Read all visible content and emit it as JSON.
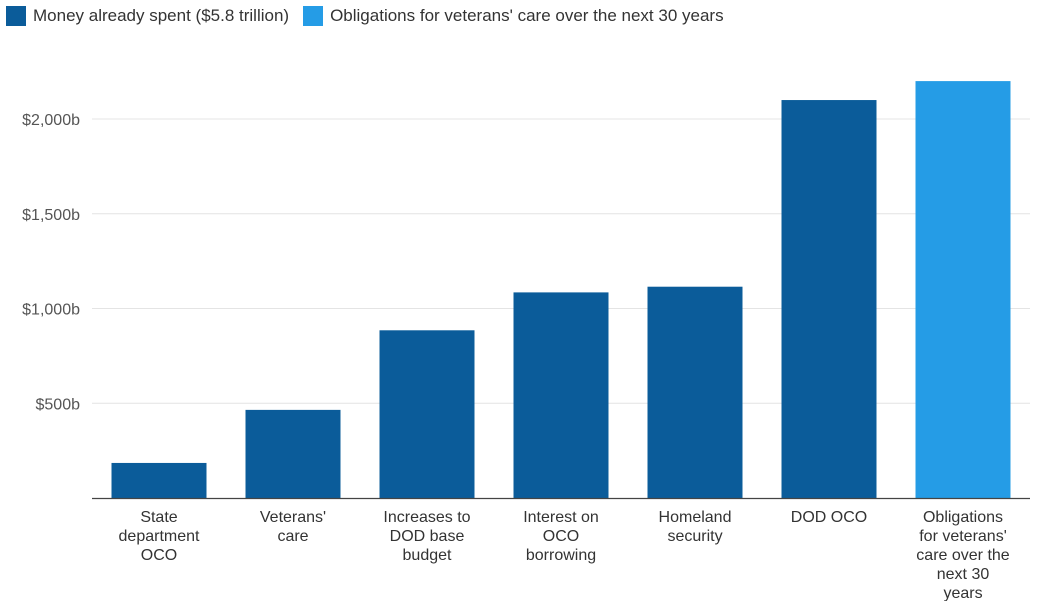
{
  "legend": [
    {
      "label": "Money already spent ($5.8 trillion)",
      "color": "#0b5c9a"
    },
    {
      "label": "Obligations for veterans' care over the next 30 years",
      "color": "#259ce6"
    }
  ],
  "chart_data": {
    "type": "bar",
    "categories": [
      "State department OCO",
      "Veterans' care",
      "Increases to DOD base budget",
      "Interest on OCO borrowing",
      "Homeland security",
      "DOD OCO",
      "Obligations for veterans' care over the next 30 years"
    ],
    "category_lines": [
      [
        "State",
        "department",
        "OCO"
      ],
      [
        "Veterans'",
        "care"
      ],
      [
        "Increases to",
        "DOD base",
        "budget"
      ],
      [
        "Interest on",
        "OCO",
        "borrowing"
      ],
      [
        "Homeland",
        "security"
      ],
      [
        "DOD OCO"
      ],
      [
        "Obligations",
        "for veterans'",
        "care over the",
        "next 30",
        "years"
      ]
    ],
    "values": [
      185,
      465,
      885,
      1085,
      1115,
      2100,
      2200
    ],
    "series_index": [
      0,
      0,
      0,
      0,
      0,
      0,
      1
    ],
    "series": [
      {
        "name": "Money already spent ($5.8 trillion)",
        "color": "#0b5c9a"
      },
      {
        "name": "Obligations for veterans' care over the next 30 years",
        "color": "#259ce6"
      }
    ],
    "yticks": [
      {
        "value": 500,
        "label": "$500b"
      },
      {
        "value": 1000,
        "label": "$1,000b"
      },
      {
        "value": 1500,
        "label": "$1,500b"
      },
      {
        "value": 2000,
        "label": "$2,000b"
      }
    ],
    "ylim": [
      0,
      2400
    ],
    "grid": true,
    "legend_position": "top-left",
    "title": "",
    "xlabel": "",
    "ylabel": ""
  }
}
